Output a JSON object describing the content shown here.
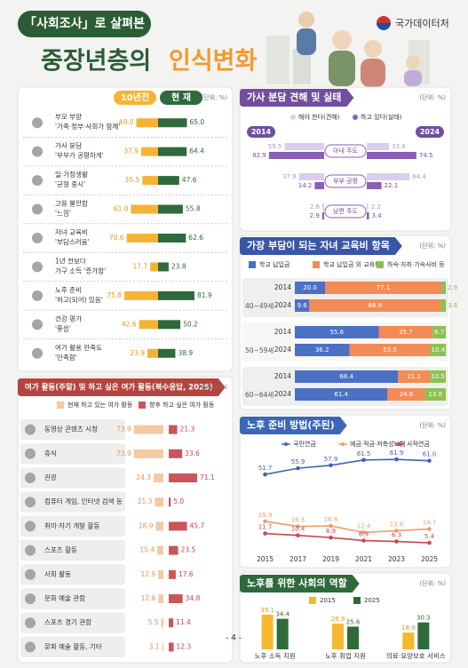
{
  "header": {
    "badge": "「사회조사」로 살펴본",
    "title_main": "중장년층의",
    "title_highlight": "인식변화",
    "org": "국가데이터처"
  },
  "chart_data": [
    {
      "type": "butterfly",
      "unit": "(단위: %)",
      "categories": [
        [
          "부모 부양",
          "'가족·정부·사회가 함께'"
        ],
        [
          "가사 분담",
          "'부부가 공평하게'"
        ],
        [
          "일·가정생활",
          "'균형 중시'"
        ],
        [
          "고용 불안함",
          "'느낌'"
        ],
        [
          "자녀 교육비",
          "'부담스러움'"
        ],
        [
          "1년 전보다",
          "가구 소득 '증가함'"
        ],
        [
          "노후 준비",
          "'하고(되어) 있음'"
        ],
        [
          "건강 평가",
          "'좋음'"
        ],
        [
          "여가 활용 만족도",
          "'만족함'"
        ]
      ],
      "series": [
        {
          "name": "10년전",
          "color": "#f5b335",
          "values": [
            49.0,
            37.9,
            35.5,
            61.0,
            70.6,
            17.7,
            75.8,
            42.6,
            23.9
          ],
          "value_labels": [
            "49.0",
            "37.9",
            "35.5",
            "61.0",
            "70.6",
            "17.7",
            "75.8",
            "42.6",
            "23.9"
          ]
        },
        {
          "name": "현 재",
          "color": "#2f6a3c",
          "values": [
            65.0,
            64.4,
            47.6,
            55.8,
            62.6,
            23.8,
            81.9,
            50.2,
            38.9
          ],
          "value_labels": [
            "65.0",
            "64.4",
            "47.6",
            "55.8",
            "62.6",
            "23.8",
            "81.9",
            "50.2",
            "38.9"
          ]
        }
      ]
    },
    {
      "type": "butterfly",
      "title": "여가 활동(주말) 및 하고 싶은 여가 활동(복수응답, 2025)",
      "unit": "(단위: %)",
      "categories": [
        "동영상 콘텐츠 시청",
        "휴식",
        "관광",
        "컴퓨터 게임, 인터넷 검색 등",
        "취미·자기 개발 활동",
        "스포츠 활동",
        "사회 활동",
        "문화 예술 관람",
        "스포츠 경기 관람",
        "문화 예술 활동, 기타"
      ],
      "series": [
        {
          "name": "현재 하고 있는 여가 활동",
          "color": "#f6c9a2",
          "values": [
            73.9,
            73.9,
            24.3,
            21.3,
            18.9,
            15.4,
            12.9,
            12.6,
            5.5,
            3.1
          ]
        },
        {
          "name": "향후 하고 싶은 여가 활동",
          "color": "#c9565b",
          "values": [
            21.3,
            33.6,
            71.1,
            5.0,
            45.7,
            23.5,
            17.6,
            34.8,
            11.4,
            12.3
          ],
          "value_labels": [
            "21.3",
            "33.6",
            "71.1",
            "5.0",
            "45.7",
            "23.5",
            "17.6",
            "34.8",
            "11.4",
            "12.3"
          ]
        }
      ]
    },
    {
      "type": "pyramid",
      "title": "가사 분담 견해 및 실태",
      "unit": "(단위: %)",
      "categories": [
        "아내 주도",
        "부부 공평",
        "남편 주도"
      ],
      "series": [
        {
          "name": "해야 한다(견해)",
          "color": "#dccdef"
        },
        {
          "name": "하고 있다(실태)",
          "color": "#8a5fb5"
        }
      ],
      "groups": [
        {
          "name": "2014",
          "series_values": [
            [
              59.5,
              37.9,
              2.6
            ],
            [
              82.9,
              14.2,
              2.9
            ]
          ]
        },
        {
          "name": "2024",
          "series_values": [
            [
              33.4,
              64.4,
              2.2
            ],
            [
              74.5,
              22.1,
              3.4
            ]
          ]
        }
      ]
    },
    {
      "type": "stacked",
      "title": "가장 부담이 되는 자녀 교육비 항목",
      "unit": "(단위: %)",
      "xlim": [
        0,
        100
      ],
      "series": [
        {
          "name": "학교 납입금",
          "color": "#4b70c4"
        },
        {
          "name": "학교 납입금 외 교육비",
          "color": "#f28b55"
        },
        {
          "name": "하숙·자취·기숙사비 등",
          "color": "#8cc152"
        }
      ],
      "groups": [
        {
          "name": "40~49세",
          "rows": [
            {
              "year": "2014",
              "values": [
                20.0,
                77.1,
                2.9
              ],
              "value_labels": [
                "20.0",
                "77.1",
                "2.9"
              ]
            },
            {
              "year": "2024",
              "values": [
                9.6,
                86.9,
                3.6
              ]
            }
          ]
        },
        {
          "name": "50~59세",
          "rows": [
            {
              "year": "2014",
              "values": [
                55.6,
                35.7,
                8.7
              ]
            },
            {
              "year": "2024",
              "values": [
                36.2,
                53.5,
                10.4
              ]
            }
          ]
        },
        {
          "name": "60~64세",
          "rows": [
            {
              "year": "2014",
              "values": [
                68.4,
                21.1,
                10.5
              ]
            },
            {
              "year": "2024",
              "values": [
                61.4,
                24.8,
                13.8
              ]
            }
          ]
        }
      ]
    },
    {
      "type": "line",
      "title": "노후 준비 방법(주된)",
      "unit": "(단위: %)",
      "x": [
        2015,
        2017,
        2019,
        2021,
        2023,
        2025
      ],
      "xlim": [
        2014,
        2026
      ],
      "xticks": [
        2015,
        2017,
        2019,
        2021,
        2023,
        2025
      ],
      "ylim": [
        0,
        65
      ],
      "series": [
        {
          "name": "국민연금",
          "color": "#3f63b5",
          "values": [
            51.7,
            55.9,
            57.9,
            61.5,
            61.9,
            61.0
          ],
          "value_labels": [
            "51.7",
            "55.9",
            "57.9",
            "61.5",
            "61.9",
            "61.0"
          ]
        },
        {
          "name": "예금·적금·저축성보험",
          "color": "#e8a06a",
          "values": [
            19.9,
            16.5,
            16.8,
            12.4,
            13.6,
            14.7
          ]
        },
        {
          "name": "사적연금",
          "color": "#c9474f",
          "values": [
            11.7,
            10.4,
            8.9,
            6.9,
            6.3,
            5.4
          ]
        }
      ]
    },
    {
      "type": "bar",
      "title": "노후를 위한 사회의 역할",
      "unit": "(단위: %)",
      "ylim": [
        0,
        40
      ],
      "categories": [
        "노후 소득 지원",
        "노후 취업 지원",
        "의료·요양보호 서비스"
      ],
      "series": [
        {
          "name": "2015",
          "color": "#f5b82e",
          "values": [
            39.1,
            28.9,
            18.9
          ]
        },
        {
          "name": "2025",
          "color": "#2e6b3a",
          "values": [
            34.4,
            25.6,
            30.3
          ]
        }
      ]
    }
  ],
  "footer": "- 4 -"
}
